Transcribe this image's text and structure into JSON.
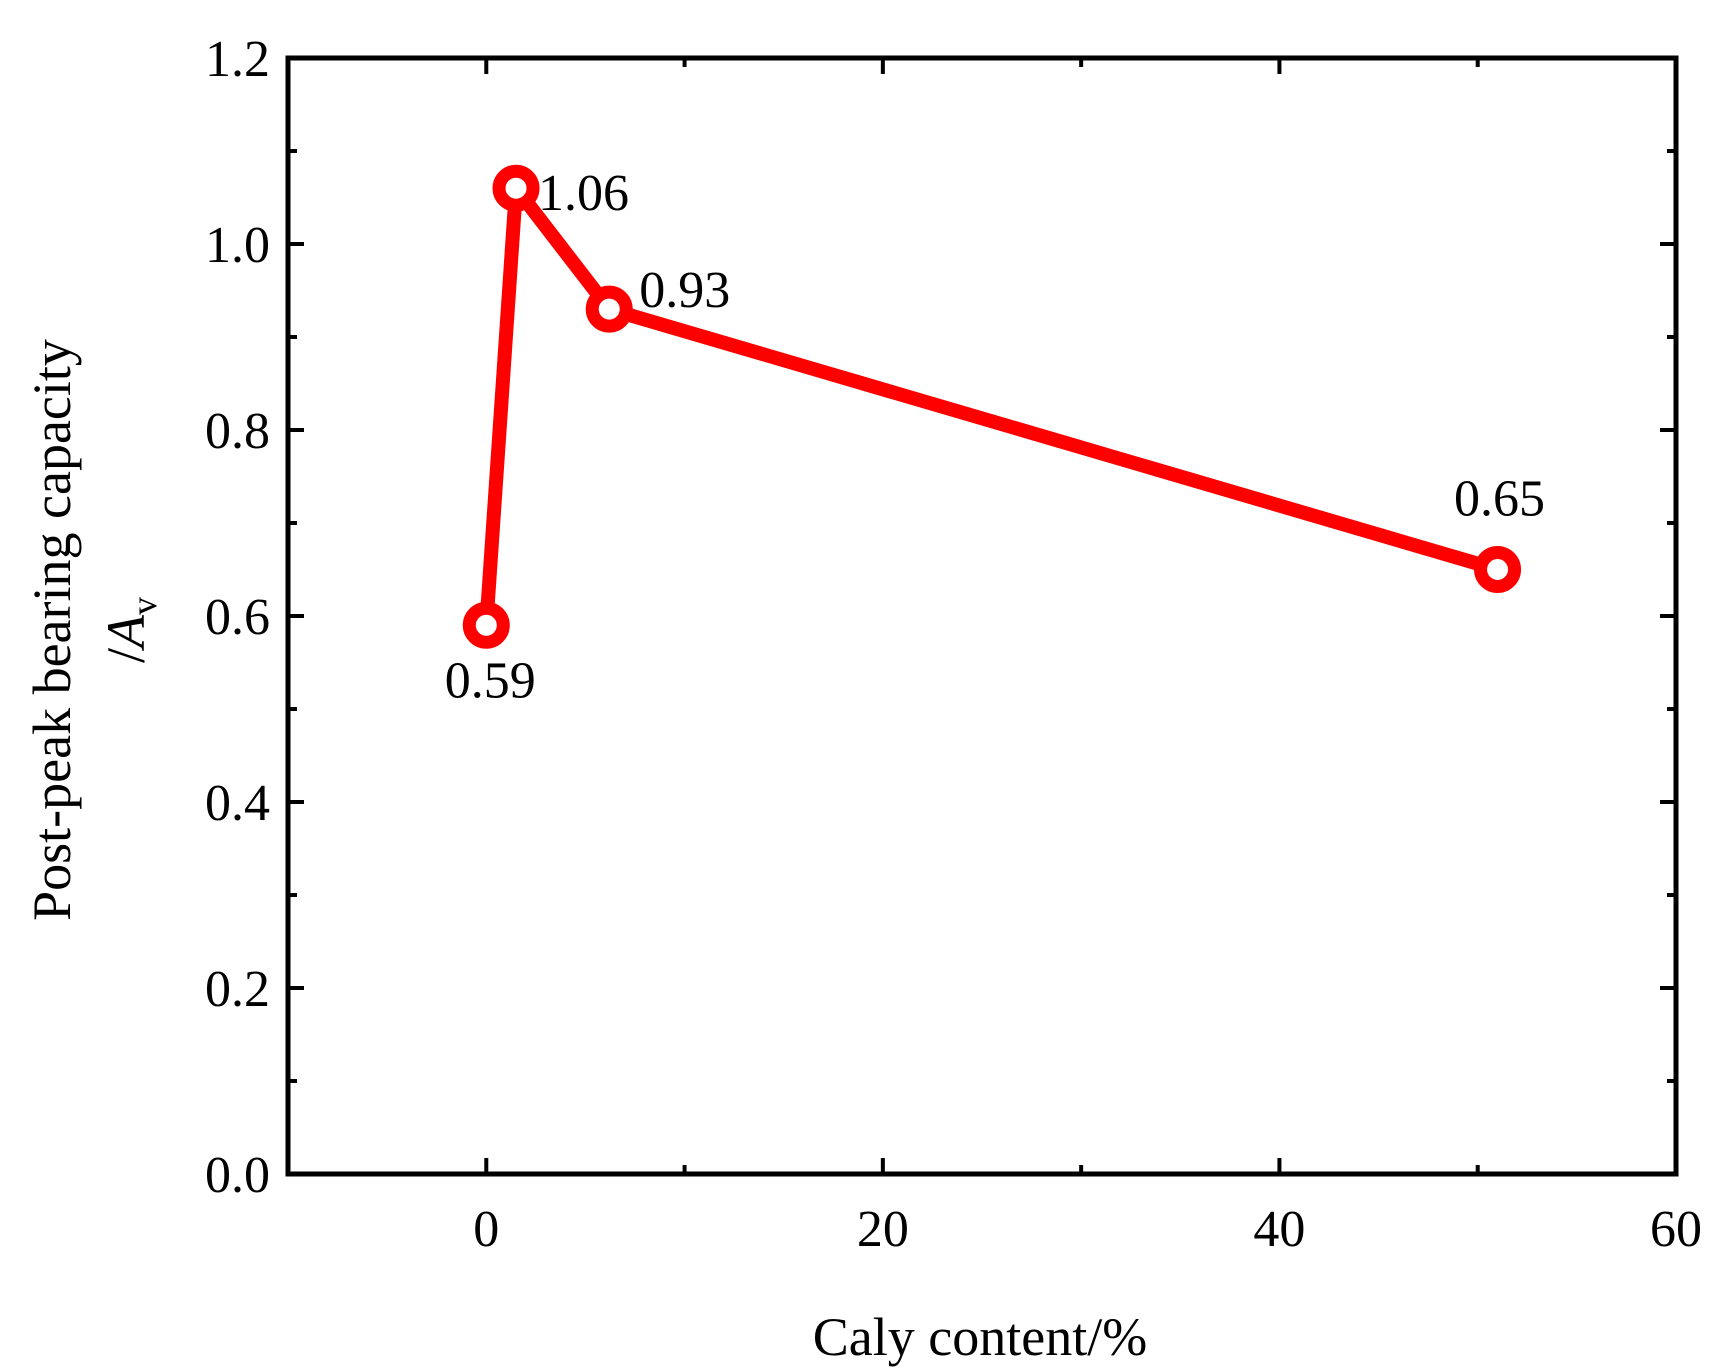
{
  "chart_data": {
    "type": "line",
    "xlabel": "Caly content/%",
    "ylabel_line1": "Post-peak bearing capacity",
    "ylabel_line2_prefix": "/",
    "ylabel_line2_var": "A",
    "ylabel_line2_sub": "v",
    "xlim": [
      -10,
      60
    ],
    "ylim": [
      0.0,
      1.2
    ],
    "x_ticks": [
      0,
      20,
      40,
      60
    ],
    "x_tick_labels": [
      "0",
      "20",
      "40",
      "60"
    ],
    "x_minor_ticks": [
      10,
      30,
      50
    ],
    "y_ticks": [
      0.0,
      0.2,
      0.4,
      0.6,
      0.8,
      1.0,
      1.2
    ],
    "y_tick_labels": [
      "0.0",
      "0.2",
      "0.4",
      "0.6",
      "0.8",
      "1.0",
      "1.2"
    ],
    "y_minor_ticks": [
      0.1,
      0.3,
      0.5,
      0.7,
      0.9,
      1.1
    ],
    "grid": false,
    "series": [
      {
        "color": "#ff0000",
        "points": [
          {
            "x": 0,
            "y": 0.59,
            "label": "0.59",
            "label_pos": "below"
          },
          {
            "x": 1.5,
            "y": 1.06,
            "label": "1.06",
            "label_pos": "right"
          },
          {
            "x": 6.2,
            "y": 0.93,
            "label": "0.93",
            "label_pos": "upper-right"
          },
          {
            "x": 51,
            "y": 0.65,
            "label": "0.65",
            "label_pos": "above"
          }
        ]
      }
    ]
  }
}
